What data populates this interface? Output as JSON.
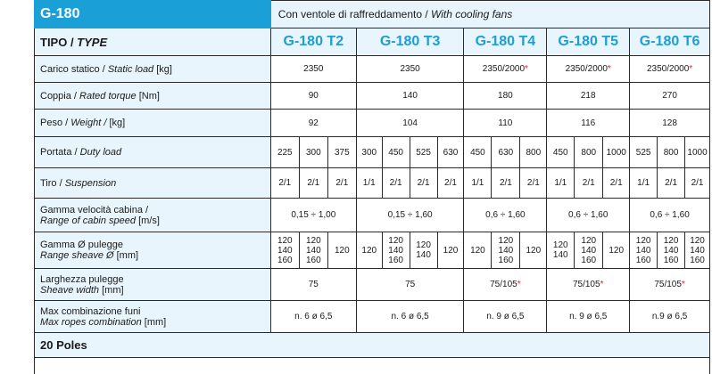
{
  "series_title": "G-180",
  "header_note_it": "Con ventole di raffreddamento / ",
  "header_note_en": "With cooling fans",
  "type_label_it": "TIPO / ",
  "type_label_en": "TYPE",
  "models": [
    "G-180 T2",
    "G-180 T3",
    "G-180 T4",
    "G-180 T5",
    "G-180 T6"
  ],
  "rows": {
    "static_load": {
      "it": "Carico statico / ",
      "en": "Static load",
      "unit": " [kg]",
      "values": [
        "2350",
        "2350",
        "2350/2000",
        "2350/2000",
        "2350/2000"
      ],
      "star": "*"
    },
    "torque": {
      "it": "Coppia / ",
      "en": "Rated torque",
      "unit": " [Nm]",
      "values": [
        "90",
        "140",
        "180",
        "218",
        "270"
      ]
    },
    "weight": {
      "it": "Peso / ",
      "en": "Weight /",
      "unit": " [kg]",
      "values": [
        "92",
        "104",
        "110",
        "116",
        "128"
      ]
    },
    "duty": {
      "it": "Portata / ",
      "en": "Duty load",
      "values": [
        "225",
        "300",
        "375",
        "300",
        "450",
        "525",
        "630",
        "450",
        "630",
        "800",
        "450",
        "800",
        "1000",
        "525",
        "800",
        "1000"
      ]
    },
    "suspension": {
      "it": "Tiro / ",
      "en": "Suspension",
      "values": [
        "2/1",
        "2/1",
        "2/1",
        "1/1",
        "2/1",
        "2/1",
        "2/1",
        "1/1",
        "2/1",
        "2/1",
        "1/1",
        "2/1",
        "2/1",
        "1/1",
        "2/1",
        "2/1"
      ]
    },
    "speed": {
      "it": "Gamma velocità cabina /",
      "en": "Range of cabin speed",
      "unit": " [m/s]",
      "values": [
        "0,15 ÷ 1,00",
        "0,15 ÷ 1,60",
        "0,6 ÷ 1,60",
        "0,6 ÷ 1,60",
        "0,6 ÷ 1,60"
      ]
    },
    "sheave": {
      "it": "Gamma Ø pulegge",
      "en": "Range sheave Ø",
      "unit": "  [mm]",
      "values": [
        "120\n140\n160",
        "120\n140\n160",
        "120",
        "120",
        "120\n140\n160",
        "120\n140",
        "120",
        "120",
        "120\n140\n160",
        "120",
        "120\n140",
        "120\n140\n160",
        "120",
        "120\n140\n160",
        "120\n140\n160",
        "120\n140\n160"
      ]
    },
    "sheave_width": {
      "it": "Larghezza pulegge",
      "en": "Sheave width",
      "unit": "  [mm]",
      "values": [
        "75",
        "75",
        "75/105",
        "75/105",
        "75/105"
      ]
    },
    "ropes": {
      "it": "Max combinazione funi",
      "en": "Max ropes combination",
      "unit": " [mm]",
      "values": [
        "n. 6 ø 6,5",
        "n. 6 ø 6,5",
        "n. 9 ø 6,5",
        "n. 9 ø 6,5",
        "n.9 ø 6,5"
      ]
    }
  },
  "footer": "20 Poles",
  "colors": {
    "accent": "#1a9fd6",
    "light": "#e9f5fc",
    "star": "#d9232a"
  }
}
